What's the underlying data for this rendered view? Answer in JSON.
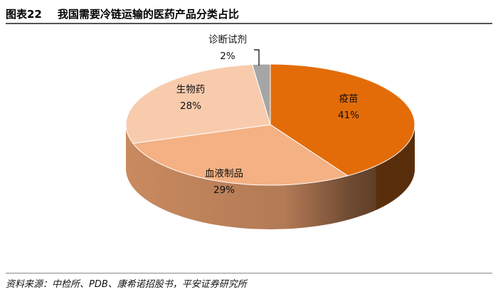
{
  "figure": {
    "number": "图表22",
    "title": "我国需要冷链运输的医药产品分类占比"
  },
  "source": "资料来源：中检所、PDB、康希诺招股书，平安证券研究所",
  "chart_data": {
    "type": "pie",
    "style": "3d",
    "slices": [
      {
        "label": "疫苗",
        "value": 41,
        "value_label": "41%",
        "color": "#E36C09"
      },
      {
        "label": "血液制品",
        "value": 29,
        "value_label": "29%",
        "color": "#F4B183"
      },
      {
        "label": "生物药",
        "value": 28,
        "value_label": "28%",
        "color": "#F8CBAD"
      },
      {
        "label": "诊断试剂",
        "value": 2,
        "value_label": "2%",
        "color": "#A6A6A6"
      }
    ]
  }
}
